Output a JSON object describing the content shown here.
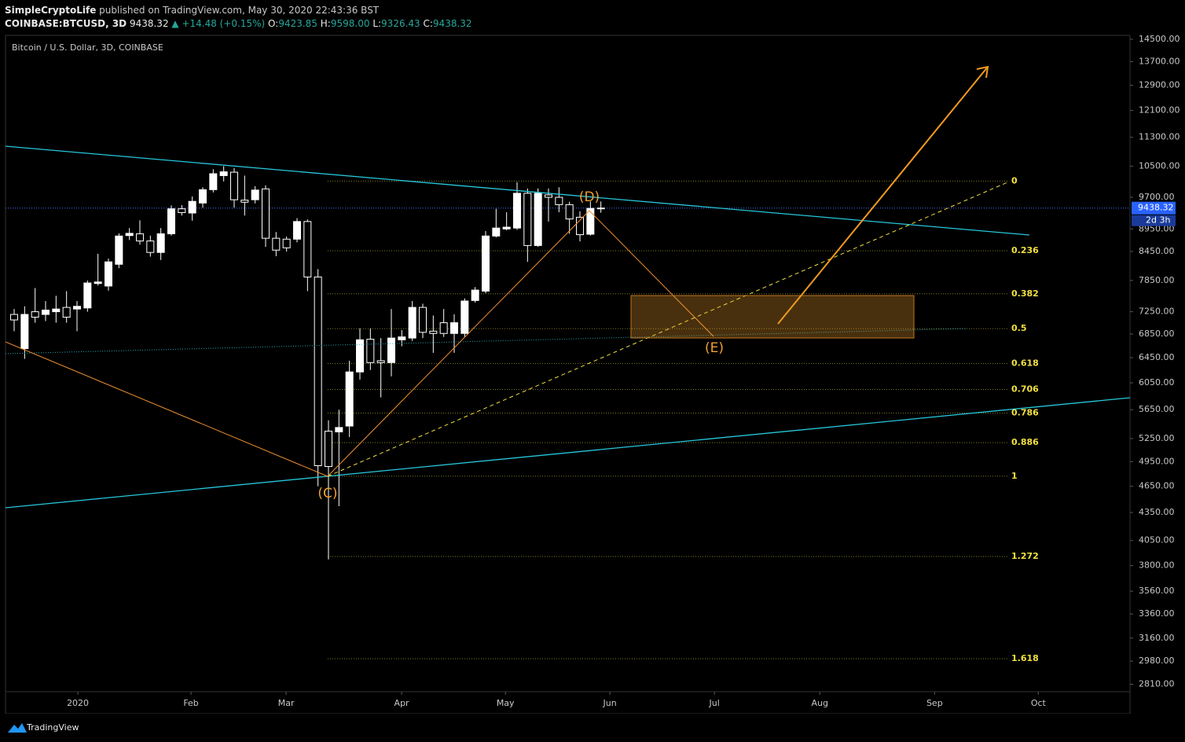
{
  "header": {
    "author": "SimpleCryptoLife",
    "published": "published on TradingView.com, May 30, 2020 22:43:36 BST",
    "symbol": "COINBASE:BTCUSD, 3D",
    "last": "9438.32",
    "change": "▲ +14.48 (+0.15%)",
    "ohlc": [
      {
        "key": "O:",
        "value": "9423.85"
      },
      {
        "key": "H:",
        "value": "9598.00"
      },
      {
        "key": "L:",
        "value": "9326.43"
      },
      {
        "key": "C:",
        "value": "9438.32"
      }
    ]
  },
  "footer": {
    "brand": "TradingView"
  },
  "chart_data": {
    "type": "candlestick",
    "title": "Bitcoin / U.S. Dollar, 3D, COINBASE",
    "log_scale": true,
    "up_color": "#ffffff",
    "down_color": "#000000",
    "wick_color": "#ffffff",
    "open": [
      7200,
      6600,
      7250,
      7200,
      7250,
      7330,
      7300,
      7320,
      7790,
      7740,
      8180,
      8800,
      8840,
      8680,
      8430,
      8840,
      9420,
      9320,
      9560,
      9890,
      10250,
      10340,
      9630,
      9640,
      9910,
      8740,
      8720,
      8720,
      9120,
      7920,
      5350,
      5340,
      5420,
      6220,
      6760,
      6400,
      6370,
      6750,
      6780,
      7330,
      6900,
      7050,
      6860,
      6860,
      7460,
      7640,
      8790,
      8950,
      8970,
      9800,
      8580,
      9760,
      9700,
      9520,
      9220,
      8830,
      9423.85
    ],
    "high": [
      7300,
      7350,
      7700,
      7450,
      7550,
      7640,
      7450,
      7850,
      8400,
      8300,
      8850,
      8970,
      9150,
      8800,
      8970,
      9500,
      9510,
      9720,
      9950,
      10420,
      10500,
      10450,
      10250,
      9980,
      10000,
      8880,
      8780,
      9200,
      9170,
      8080,
      5500,
      5650,
      6400,
      6950,
      6950,
      6780,
      7300,
      6920,
      7450,
      7400,
      7180,
      7300,
      7200,
      7500,
      7720,
      8900,
      9420,
      9340,
      10080,
      9920,
      9920,
      9920,
      9950,
      9590,
      9360,
      9600,
      9598
    ],
    "low": [
      6900,
      6430,
      7050,
      7080,
      7050,
      7050,
      6900,
      7250,
      7750,
      7650,
      8100,
      8700,
      8600,
      8340,
      8270,
      8800,
      9260,
      9140,
      9450,
      9820,
      10100,
      9450,
      9260,
      9550,
      8550,
      8350,
      8450,
      8650,
      7640,
      4650,
      3860,
      4420,
      5270,
      6100,
      6250,
      5830,
      6150,
      6640,
      6730,
      6780,
      6530,
      6800,
      6530,
      6800,
      7420,
      7600,
      8760,
      8920,
      8930,
      8230,
      8550,
      9120,
      9340,
      8840,
      8670,
      8800,
      9326.43
    ],
    "close": [
      7100,
      7200,
      7150,
      7280,
      7300,
      7150,
      7350,
      7800,
      7820,
      8230,
      8790,
      8850,
      8680,
      8430,
      8840,
      9420,
      9330,
      9600,
      9890,
      10300,
      10350,
      9640,
      9580,
      9880,
      8740,
      8480,
      8530,
      9120,
      7920,
      4900,
      4890,
      5400,
      6220,
      6750,
      6370,
      6370,
      6780,
      6800,
      7330,
      6880,
      6860,
      6860,
      7050,
      7450,
      7660,
      8790,
      8970,
      8990,
      9800,
      8580,
      9800,
      9700,
      9520,
      9180,
      8820,
      9430,
      9438.32
    ],
    "xlim": [
      -0.825,
      106.5
    ],
    "xticks": [
      {
        "value": 6.08,
        "label": "2020"
      },
      {
        "value": 16.88,
        "label": "Feb"
      },
      {
        "value": 25.96,
        "label": "Mar"
      },
      {
        "value": 36.98,
        "label": "Apr"
      },
      {
        "value": 46.89,
        "label": "May"
      },
      {
        "value": 56.86,
        "label": "Jun"
      },
      {
        "value": 66.84,
        "label": "Jul"
      },
      {
        "value": 76.89,
        "label": "Aug"
      },
      {
        "value": 87.85,
        "label": "Sep"
      },
      {
        "value": 97.75,
        "label": "Oct"
      }
    ],
    "ylim": [
      2757,
      14646
    ],
    "yticks": [
      {
        "value": 14500,
        "label": "14500.00"
      },
      {
        "value": 13700,
        "label": "13700.00"
      },
      {
        "value": 12900,
        "label": "12900.00"
      },
      {
        "value": 12100,
        "label": "12100.00"
      },
      {
        "value": 11300,
        "label": "11300.00"
      },
      {
        "value": 10500,
        "label": "10500.00"
      },
      {
        "value": 9700,
        "label": "9700.00"
      },
      {
        "value": 8950,
        "label": "8950.00"
      },
      {
        "value": 8450,
        "label": "8450.00"
      },
      {
        "value": 7850,
        "label": "7850.00"
      },
      {
        "value": 7250,
        "label": "7250.00"
      },
      {
        "value": 6850,
        "label": "6850.00"
      },
      {
        "value": 6450,
        "label": "6450.00"
      },
      {
        "value": 6050,
        "label": "6050.00"
      },
      {
        "value": 5650,
        "label": "5650.00"
      },
      {
        "value": 5250,
        "label": "5250.00"
      },
      {
        "value": 4950,
        "label": "4950.00"
      },
      {
        "value": 4650,
        "label": "4650.00"
      },
      {
        "value": 4350,
        "label": "4350.00"
      },
      {
        "value": 4050,
        "label": "4050.00"
      },
      {
        "value": 3800,
        "label": "3800.00"
      },
      {
        "value": 3560,
        "label": "3560.00"
      },
      {
        "value": 3360,
        "label": "3360.00"
      },
      {
        "value": 3160,
        "label": "3160.00"
      },
      {
        "value": 2980,
        "label": "2980.00"
      },
      {
        "value": 2810,
        "label": "2810.00"
      }
    ],
    "grid": false,
    "countdown": "2d 3h",
    "fib": {
      "high": 10110,
      "low": 4770,
      "color": "#f0e040",
      "levels": [
        0,
        0.236,
        0.382,
        0.5,
        0.618,
        0.706,
        0.786,
        0.886,
        1,
        1.272,
        1.618
      ]
    },
    "annotations": [
      "(C)",
      "(D)",
      "(E)"
    ]
  }
}
